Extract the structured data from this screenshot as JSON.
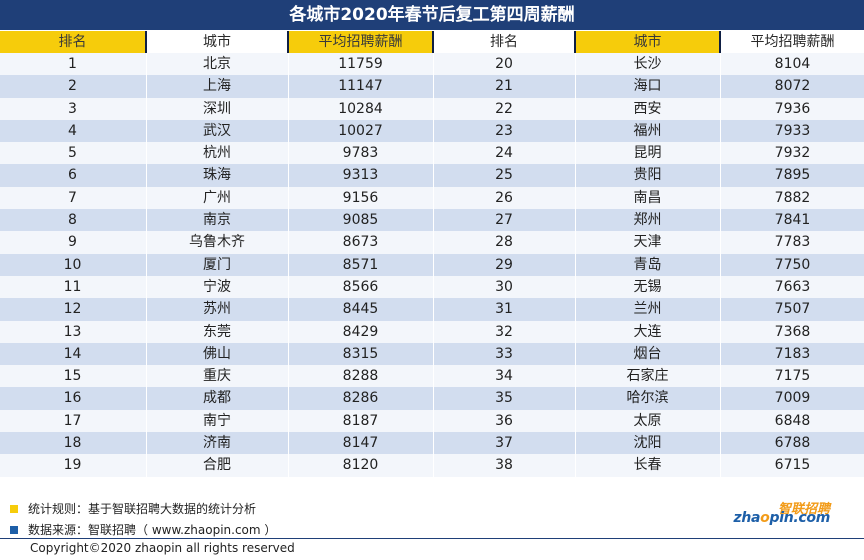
{
  "title": "各城市2020年春节后复工第四周薪酬",
  "colors": {
    "title_bg": "#1f3f78",
    "header_yellow": "#f6cc0b",
    "row_light": "#f3f6fb",
    "row_dark": "#d2ddef",
    "logo_orange": "#f29b18",
    "logo_blue": "#1d5fa8"
  },
  "headers": [
    "排名",
    "城市",
    "平均招聘薪酬",
    "排名",
    "城市",
    "平均招聘薪酬"
  ],
  "rows": [
    [
      "1",
      "北京",
      "11759",
      "20",
      "长沙",
      "8104"
    ],
    [
      "2",
      "上海",
      "11147",
      "21",
      "海口",
      "8072"
    ],
    [
      "3",
      "深圳",
      "10284",
      "22",
      "西安",
      "7936"
    ],
    [
      "4",
      "武汉",
      "10027",
      "23",
      "福州",
      "7933"
    ],
    [
      "5",
      "杭州",
      "9783",
      "24",
      "昆明",
      "7932"
    ],
    [
      "6",
      "珠海",
      "9313",
      "25",
      "贵阳",
      "7895"
    ],
    [
      "7",
      "广州",
      "9156",
      "26",
      "南昌",
      "7882"
    ],
    [
      "8",
      "南京",
      "9085",
      "27",
      "郑州",
      "7841"
    ],
    [
      "9",
      "乌鲁木齐",
      "8673",
      "28",
      "天津",
      "7783"
    ],
    [
      "10",
      "厦门",
      "8571",
      "29",
      "青岛",
      "7750"
    ],
    [
      "11",
      "宁波",
      "8566",
      "30",
      "无锡",
      "7663"
    ],
    [
      "12",
      "苏州",
      "8445",
      "31",
      "兰州",
      "7507"
    ],
    [
      "13",
      "东莞",
      "8429",
      "32",
      "大连",
      "7368"
    ],
    [
      "14",
      "佛山",
      "8315",
      "33",
      "烟台",
      "7183"
    ],
    [
      "15",
      "重庆",
      "8288",
      "34",
      "石家庄",
      "7175"
    ],
    [
      "16",
      "成都",
      "8286",
      "35",
      "哈尔滨",
      "7009"
    ],
    [
      "17",
      "南宁",
      "8187",
      "36",
      "太原",
      "6848"
    ],
    [
      "18",
      "济南",
      "8147",
      "37",
      "沈阳",
      "6788"
    ],
    [
      "19",
      "合肥",
      "8120",
      "38",
      "长春",
      "6715"
    ]
  ],
  "footer": {
    "note1": "统计规则：基于智联招聘大数据的统计分析",
    "note2": "数据来源：智联招聘（ www.zhaopin.com ）",
    "copyright": "Copyright©2020 zhaopin all rights reserved"
  },
  "logo": {
    "cn": "智联招聘",
    "en_part1": "zha",
    "en_o": "o",
    "en_part2": "pin.com"
  }
}
